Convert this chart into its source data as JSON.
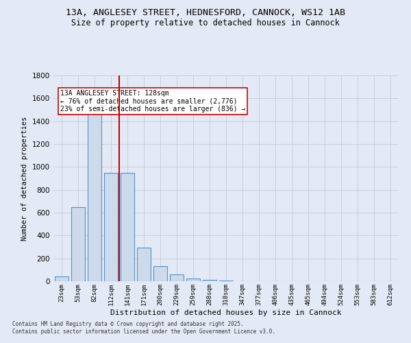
{
  "title_line1": "13A, ANGLESEY STREET, HEDNESFORD, CANNOCK, WS12 1AB",
  "title_line2": "Size of property relative to detached houses in Cannock",
  "xlabel": "Distribution of detached houses by size in Cannock",
  "ylabel": "Number of detached properties",
  "categories": [
    "23sqm",
    "53sqm",
    "82sqm",
    "112sqm",
    "141sqm",
    "171sqm",
    "200sqm",
    "229sqm",
    "259sqm",
    "288sqm",
    "318sqm",
    "347sqm",
    "377sqm",
    "406sqm",
    "435sqm",
    "465sqm",
    "494sqm",
    "524sqm",
    "553sqm",
    "583sqm",
    "612sqm"
  ],
  "values": [
    40,
    650,
    1500,
    950,
    950,
    295,
    130,
    60,
    25,
    10,
    5,
    3,
    3,
    3,
    0,
    0,
    0,
    0,
    0,
    0,
    0
  ],
  "bar_color": "#ccdaeb",
  "bar_edge_color": "#5590c8",
  "grid_color": "#c8cede",
  "background_color": "#e4eaf5",
  "vline_x_index": 3.5,
  "vline_color": "#cc0000",
  "annotation_text": "13A ANGLESEY STREET: 128sqm\n← 76% of detached houses are smaller (2,776)\n23% of semi-detached houses are larger (836) →",
  "annotation_box_color": "#ffffff",
  "annotation_box_edge": "#cc0000",
  "ylim": [
    0,
    1800
  ],
  "yticks": [
    0,
    200,
    400,
    600,
    800,
    1000,
    1200,
    1400,
    1600,
    1800
  ],
  "footer_line1": "Contains HM Land Registry data © Crown copyright and database right 2025.",
  "footer_line2": "Contains public sector information licensed under the Open Government Licence v3.0."
}
